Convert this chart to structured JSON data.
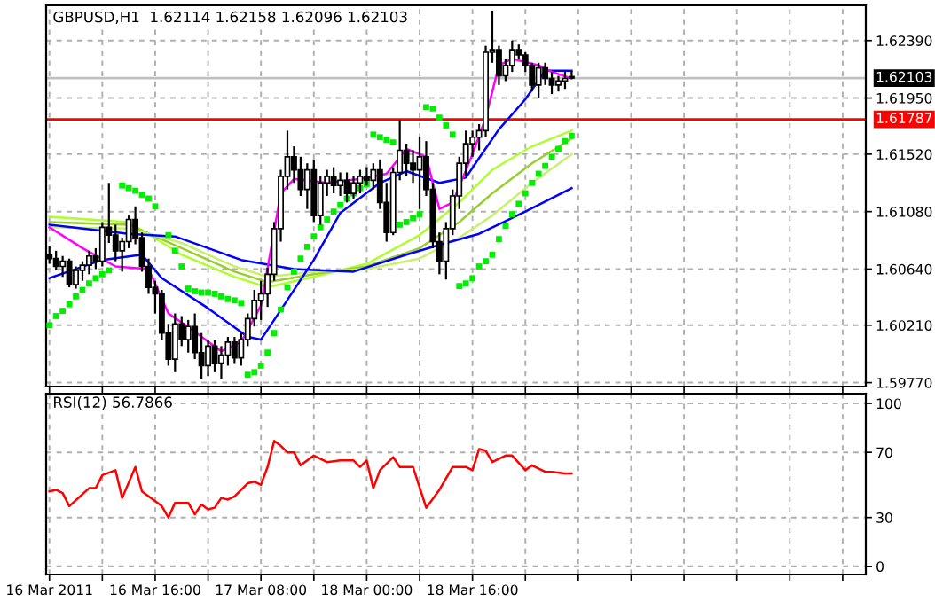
{
  "chart_data": [
    {
      "type": "candlestick",
      "title": "GBPUSD,H1  1.62114 1.62158 1.62096 1.62103",
      "x": [
        "2011-03-16T00:00",
        "2011-03-16T01:00",
        "2011-03-16T02:00",
        "2011-03-16T03:00",
        "2011-03-16T04:00",
        "2011-03-16T05:00",
        "2011-03-16T06:00",
        "2011-03-16T07:00",
        "2011-03-16T08:00",
        "2011-03-16T09:00",
        "2011-03-16T10:00",
        "2011-03-16T11:00",
        "2011-03-16T12:00",
        "2011-03-16T13:00",
        "2011-03-16T14:00",
        "2011-03-16T15:00",
        "2011-03-16T16:00",
        "2011-03-16T17:00",
        "2011-03-16T18:00",
        "2011-03-16T19:00",
        "2011-03-16T20:00",
        "2011-03-16T21:00",
        "2011-03-16T22:00",
        "2011-03-16T23:00",
        "2011-03-17T00:00",
        "2011-03-17T01:00",
        "2011-03-17T02:00",
        "2011-03-17T03:00",
        "2011-03-17T04:00",
        "2011-03-17T05:00",
        "2011-03-17T06:00",
        "2011-03-17T07:00",
        "2011-03-17T08:00",
        "2011-03-17T09:00",
        "2011-03-17T10:00",
        "2011-03-17T11:00",
        "2011-03-17T12:00",
        "2011-03-17T13:00",
        "2011-03-17T14:00",
        "2011-03-17T15:00",
        "2011-03-17T16:00",
        "2011-03-17T17:00",
        "2011-03-17T18:00",
        "2011-03-17T19:00",
        "2011-03-17T20:00",
        "2011-03-17T21:00",
        "2011-03-17T22:00",
        "2011-03-17T23:00",
        "2011-03-18T00:00",
        "2011-03-18T01:00",
        "2011-03-18T02:00",
        "2011-03-18T03:00",
        "2011-03-18T04:00",
        "2011-03-18T05:00",
        "2011-03-18T06:00",
        "2011-03-18T07:00",
        "2011-03-18T08:00",
        "2011-03-18T09:00",
        "2011-03-18T10:00",
        "2011-03-18T11:00",
        "2011-03-18T12:00",
        "2011-03-18T13:00",
        "2011-03-18T14:00",
        "2011-03-18T15:00",
        "2011-03-18T16:00",
        "2011-03-18T17:00",
        "2011-03-18T18:00",
        "2011-03-18T19:00",
        "2011-03-18T20:00",
        "2011-03-18T21:00",
        "2011-03-18T22:00",
        "2011-03-18T23:00",
        "2011-03-19T00:00",
        "2011-03-19T01:00",
        "2011-03-19T02:00",
        "2011-03-19T03:00",
        "2011-03-19T04:00",
        "2011-03-19T05:00",
        "2011-03-19T06:00",
        "2011-03-19T07:00"
      ],
      "ohlc": [
        [
          1.6075,
          1.6082,
          1.6068,
          1.6072
        ],
        [
          1.6072,
          1.6078,
          1.6063,
          1.6066
        ],
        [
          1.6066,
          1.6074,
          1.6058,
          1.607
        ],
        [
          1.607,
          1.6072,
          1.605,
          1.6052
        ],
        [
          1.6052,
          1.6066,
          1.6049,
          1.6063
        ],
        [
          1.6063,
          1.607,
          1.6055,
          1.6067
        ],
        [
          1.6067,
          1.6078,
          1.606,
          1.6074
        ],
        [
          1.6074,
          1.608,
          1.6064,
          1.607
        ],
        [
          1.607,
          1.61,
          1.6066,
          1.6096
        ],
        [
          1.6096,
          1.613,
          1.6084,
          1.609
        ],
        [
          1.609,
          1.6098,
          1.607,
          1.6078
        ],
        [
          1.6078,
          1.6088,
          1.6062,
          1.6085
        ],
        [
          1.6085,
          1.6105,
          1.608,
          1.6102
        ],
        [
          1.6102,
          1.6112,
          1.6083,
          1.6088
        ],
        [
          1.6088,
          1.6092,
          1.6062,
          1.6066
        ],
        [
          1.6066,
          1.6072,
          1.6045,
          1.605
        ],
        [
          1.605,
          1.6055,
          1.603,
          1.6045
        ],
        [
          1.6045,
          1.6048,
          1.601,
          1.6015
        ],
        [
          1.6015,
          1.6022,
          1.599,
          1.5995
        ],
        [
          1.5995,
          1.603,
          1.5985,
          1.6022
        ],
        [
          1.6022,
          1.6028,
          1.6005,
          1.601
        ],
        [
          1.601,
          1.6025,
          1.6,
          1.602
        ],
        [
          1.602,
          1.603,
          1.5995,
          1.6
        ],
        [
          1.6,
          1.6015,
          1.598,
          1.599
        ],
        [
          1.599,
          1.601,
          1.5982,
          1.6005
        ],
        [
          1.6005,
          1.601,
          1.5985,
          1.5992
        ],
        [
          1.5992,
          1.6005,
          1.598,
          1.5998
        ],
        [
          1.5998,
          1.6012,
          1.599,
          1.6008
        ],
        [
          1.6008,
          1.6012,
          1.5992,
          1.5996
        ],
        [
          1.5996,
          1.6015,
          1.599,
          1.601
        ],
        [
          1.601,
          1.603,
          1.6005,
          1.6026
        ],
        [
          1.6026,
          1.6048,
          1.602,
          1.604
        ],
        [
          1.604,
          1.6055,
          1.6025,
          1.6045
        ],
        [
          1.6045,
          1.6065,
          1.6035,
          1.606
        ],
        [
          1.606,
          1.61,
          1.6055,
          1.6095
        ],
        [
          1.6095,
          1.614,
          1.6085,
          1.6135
        ],
        [
          1.6135,
          1.617,
          1.6125,
          1.615
        ],
        [
          1.615,
          1.6158,
          1.613,
          1.614
        ],
        [
          1.614,
          1.615,
          1.612,
          1.6125
        ],
        [
          1.6125,
          1.6145,
          1.611,
          1.614
        ],
        [
          1.614,
          1.6148,
          1.61,
          1.6105
        ],
        [
          1.6105,
          1.6135,
          1.6098,
          1.613
        ],
        [
          1.613,
          1.614,
          1.612,
          1.6135
        ],
        [
          1.6135,
          1.6142,
          1.6122,
          1.6128
        ],
        [
          1.6128,
          1.6138,
          1.612,
          1.6132
        ],
        [
          1.6132,
          1.6138,
          1.6115,
          1.6122
        ],
        [
          1.6122,
          1.6135,
          1.6118,
          1.613
        ],
        [
          1.613,
          1.614,
          1.6122,
          1.6135
        ],
        [
          1.6135,
          1.6142,
          1.6128,
          1.6132
        ],
        [
          1.6132,
          1.6145,
          1.6125,
          1.614
        ],
        [
          1.614,
          1.6148,
          1.611,
          1.6115
        ],
        [
          1.6115,
          1.613,
          1.6085,
          1.6092
        ],
        [
          1.6092,
          1.6142,
          1.609,
          1.6138
        ],
        [
          1.6138,
          1.6178,
          1.6132,
          1.6155
        ],
        [
          1.6155,
          1.616,
          1.6135,
          1.6145
        ],
        [
          1.6145,
          1.6155,
          1.613,
          1.614
        ],
        [
          1.614,
          1.6165,
          1.611,
          1.615
        ],
        [
          1.615,
          1.6162,
          1.612,
          1.6125
        ],
        [
          1.6125,
          1.613,
          1.608,
          1.6085
        ],
        [
          1.6085,
          1.6092,
          1.606,
          1.607
        ],
        [
          1.607,
          1.61,
          1.6056,
          1.6095
        ],
        [
          1.6095,
          1.6125,
          1.609,
          1.612
        ],
        [
          1.612,
          1.615,
          1.611,
          1.6145
        ],
        [
          1.6145,
          1.617,
          1.6135,
          1.616
        ],
        [
          1.616,
          1.617,
          1.615,
          1.6165
        ],
        [
          1.6165,
          1.6175,
          1.6155,
          1.617
        ],
        [
          1.617,
          1.6235,
          1.6165,
          1.623
        ],
        [
          1.623,
          1.6262,
          1.6222,
          1.6232
        ],
        [
          1.6232,
          1.6235,
          1.6205,
          1.6212
        ],
        [
          1.6212,
          1.6225,
          1.6208,
          1.622
        ],
        [
          1.622,
          1.6239,
          1.6215,
          1.6232
        ],
        [
          1.6232,
          1.6236,
          1.6225,
          1.6228
        ],
        [
          1.6228,
          1.623,
          1.6215,
          1.622
        ],
        [
          1.622,
          1.6222,
          1.62,
          1.6205
        ],
        [
          1.6205,
          1.6222,
          1.6195,
          1.6218
        ],
        [
          1.6218,
          1.6222,
          1.6205,
          1.621
        ],
        [
          1.621,
          1.6215,
          1.6198,
          1.6205
        ],
        [
          1.6205,
          1.6212,
          1.62,
          1.6208
        ],
        [
          1.6208,
          1.6215,
          1.6202,
          1.621
        ],
        [
          1.62114,
          1.62158,
          1.62096,
          1.62103
        ]
      ],
      "series": [
        {
          "type": "line",
          "color": "#adff2f",
          "x": [
            "2011-03-16T00:00",
            "2011-03-16T12:00",
            "2011-03-16T20:00",
            "2011-03-17T04:00",
            "2011-03-17T09:00",
            "2011-03-17T16:00",
            "2011-03-18T00:00",
            "2011-03-18T08:00",
            "2011-03-18T14:00",
            "2011-03-18T19:00",
            "2011-03-19T01:00",
            "2011-03-19T07:00"
          ],
          "values": [
            1.6104,
            1.61,
            1.6075,
            1.6058,
            1.605,
            1.6058,
            1.6068,
            1.609,
            1.6115,
            1.614,
            1.6158,
            1.617
          ]
        },
        {
          "type": "line",
          "color": "#9acd32",
          "x": [
            "2011-03-16T00:00",
            "2011-03-16T12:00",
            "2011-03-16T20:00",
            "2011-03-17T04:00",
            "2011-03-17T09:00",
            "2011-03-17T16:00",
            "2011-03-18T00:00",
            "2011-03-18T08:00",
            "2011-03-18T14:00",
            "2011-03-18T19:00",
            "2011-03-19T01:00",
            "2011-03-19T07:00"
          ],
          "values": [
            1.61,
            1.6098,
            1.608,
            1.6062,
            1.6054,
            1.606,
            1.6066,
            1.608,
            1.61,
            1.6122,
            1.6145,
            1.6164
          ]
        },
        {
          "type": "line",
          "color": "#c8f06e",
          "x": [
            "2011-03-16T00:00",
            "2011-03-16T12:00",
            "2011-03-16T20:00",
            "2011-03-17T04:00",
            "2011-03-17T09:00",
            "2011-03-17T16:00",
            "2011-03-18T00:00",
            "2011-03-18T08:00",
            "2011-03-18T14:00",
            "2011-03-18T19:00",
            "2011-03-19T01:00",
            "2011-03-19T07:00"
          ],
          "values": [
            1.6096,
            1.6095,
            1.6084,
            1.6066,
            1.6058,
            1.6062,
            1.6064,
            1.6072,
            1.6088,
            1.6105,
            1.613,
            1.6152
          ]
        },
        {
          "type": "line",
          "color": "#0000ff",
          "x": [
            "2011-03-16T00:00",
            "2011-03-16T12:00",
            "2011-03-16T19:00",
            "2011-03-17T05:00",
            "2011-03-17T13:00",
            "2011-03-17T22:00",
            "2011-03-18T06:00",
            "2011-03-18T12:00",
            "2011-03-18T17:00",
            "2011-03-19T00:00",
            "2011-03-19T07:00"
          ],
          "values": [
            1.6098,
            1.6091,
            1.6089,
            1.6071,
            1.6064,
            1.6062,
            1.6075,
            1.6084,
            1.6091,
            1.6108,
            1.6126
          ]
        },
        {
          "type": "line",
          "color": "#0000ff",
          "x": [
            "2011-03-16T00:00",
            "2011-03-16T08:00",
            "2011-03-16T14:00",
            "2011-03-16T17:00",
            "2011-03-17T00:00",
            "2011-03-17T06:00",
            "2011-03-17T08:00",
            "2011-03-17T10:00",
            "2011-03-17T16:00",
            "2011-03-17T20:00",
            "2011-03-18T02:00",
            "2011-03-18T06:00",
            "2011-03-18T11:00",
            "2011-03-18T15:00",
            "2011-03-18T17:00",
            "2011-03-18T20:00",
            "2011-03-19T00:00",
            "2011-03-19T03:00",
            "2011-03-19T07:00"
          ],
          "values": [
            1.6057,
            1.6071,
            1.6075,
            1.6057,
            1.6034,
            1.6012,
            1.601,
            1.6025,
            1.6071,
            1.6107,
            1.613,
            1.6139,
            1.613,
            1.6134,
            1.6149,
            1.6171,
            1.6194,
            1.6216,
            1.6216
          ]
        },
        {
          "type": "line",
          "color": "#ff00ff",
          "x": [
            "2011-03-16T00:00",
            "2011-03-16T05:00",
            "2011-03-16T10:00",
            "2011-03-16T15:00",
            "2011-03-16T18:00",
            "2011-03-16T22:00",
            "2011-03-17T02:00",
            "2011-03-17T05:00",
            "2011-03-17T08:00",
            "2011-03-17T11:00",
            "2011-03-17T13:00",
            "2011-03-17T18:00",
            "2011-03-17T23:00",
            "2011-03-18T03:00",
            "2011-03-18T06:00",
            "2011-03-18T09:00",
            "2011-03-18T11:00",
            "2011-03-18T13:00",
            "2011-03-18T16:00",
            "2011-03-18T18:00",
            "2011-03-18T20:00",
            "2011-03-18T22:00",
            "2011-03-19T02:00",
            "2011-03-19T04:00",
            "2011-03-19T07:00"
          ],
          "values": [
            1.6096,
            1.608,
            1.6066,
            1.6064,
            1.603,
            1.6016,
            1.6001,
            1.6008,
            1.6036,
            1.6122,
            1.6133,
            1.613,
            1.6133,
            1.6137,
            1.6156,
            1.615,
            1.611,
            1.6115,
            1.6152,
            1.618,
            1.622,
            1.6225,
            1.622,
            1.6215,
            1.621
          ]
        },
        {
          "type": "scatter",
          "color": "#00ee00",
          "marker": "square",
          "x": [
            "2011-03-16T00:00",
            "2011-03-16T01:00",
            "2011-03-16T02:00",
            "2011-03-16T03:00",
            "2011-03-16T04:00",
            "2011-03-16T05:00",
            "2011-03-16T06:00",
            "2011-03-16T07:00",
            "2011-03-16T08:00",
            "2011-03-16T09:00",
            "2011-03-16T11:00",
            "2011-03-16T12:00",
            "2011-03-16T13:00",
            "2011-03-16T14:00",
            "2011-03-16T15:00",
            "2011-03-16T16:00",
            "2011-03-16T18:00",
            "2011-03-16T19:00",
            "2011-03-16T20:00",
            "2011-03-16T21:00",
            "2011-03-16T22:00",
            "2011-03-16T23:00",
            "2011-03-17T00:00",
            "2011-03-17T01:00",
            "2011-03-17T02:00",
            "2011-03-17T03:00",
            "2011-03-17T04:00",
            "2011-03-17T05:00",
            "2011-03-17T06:00",
            "2011-03-17T07:00",
            "2011-03-17T08:00",
            "2011-03-17T09:00",
            "2011-03-17T10:00",
            "2011-03-17T11:00",
            "2011-03-17T12:00",
            "2011-03-17T13:00",
            "2011-03-17T14:00",
            "2011-03-17T15:00",
            "2011-03-17T16:00",
            "2011-03-17T17:00",
            "2011-03-17T18:00",
            "2011-03-17T19:00",
            "2011-03-17T20:00",
            "2011-03-17T21:00",
            "2011-03-17T22:00",
            "2011-03-17T23:00",
            "2011-03-18T00:00",
            "2011-03-18T01:00",
            "2011-03-18T02:00",
            "2011-03-18T03:00",
            "2011-03-18T04:00",
            "2011-03-18T05:00",
            "2011-03-18T06:00",
            "2011-03-18T07:00",
            "2011-03-18T08:00",
            "2011-03-18T09:00",
            "2011-03-18T10:00",
            "2011-03-18T11:00",
            "2011-03-18T12:00",
            "2011-03-18T13:00",
            "2011-03-18T14:00",
            "2011-03-18T15:00",
            "2011-03-18T16:00",
            "2011-03-18T17:00",
            "2011-03-18T18:00",
            "2011-03-18T19:00",
            "2011-03-18T20:00",
            "2011-03-18T21:00",
            "2011-03-18T22:00",
            "2011-03-18T23:00",
            "2011-03-19T00:00",
            "2011-03-19T01:00",
            "2011-03-19T02:00",
            "2011-03-19T03:00",
            "2011-03-19T04:00",
            "2011-03-19T05:00",
            "2011-03-19T06:00",
            "2011-03-19T07:00"
          ],
          "values": [
            1.6021,
            1.6028,
            1.6032,
            1.6037,
            1.6043,
            1.6048,
            1.6053,
            1.6057,
            1.606,
            1.6063,
            1.6128,
            1.6126,
            1.6124,
            1.6121,
            1.6118,
            1.6112,
            1.609,
            1.6078,
            1.6066,
            1.6049,
            1.6047,
            1.6046,
            1.6046,
            1.6045,
            1.6043,
            1.6041,
            1.604,
            1.6038,
            1.5983,
            1.5985,
            1.599,
            1.6,
            1.6015,
            1.6033,
            1.605,
            1.6062,
            1.6072,
            1.6081,
            1.6089,
            1.6096,
            1.6102,
            1.6108,
            1.6113,
            1.6118,
            1.6122,
            1.6126,
            1.6129,
            1.6167,
            1.6165,
            1.6163,
            1.6161,
            1.6098,
            1.61,
            1.6103,
            1.6106,
            1.6188,
            1.6187,
            1.618,
            1.6174,
            1.6167,
            1.6051,
            1.6053,
            1.6057,
            1.6066,
            1.607,
            1.6075,
            1.6087,
            1.6097,
            1.6106,
            1.6114,
            1.6122,
            1.613,
            1.6137,
            1.6143,
            1.615,
            1.6156,
            1.6162,
            1.6166
          ]
        }
      ],
      "xlim": [
        "2011-03-15T23:30",
        "2011-03-21T03:30"
      ],
      "xticks": [
        {
          "value": "2011-03-16T00:00",
          "label": null
        },
        {
          "value": "2011-03-16T08:00",
          "label": null
        },
        {
          "value": "2011-03-16T16:00",
          "label": null
        },
        {
          "value": "2011-03-17T00:00",
          "label": null
        },
        {
          "value": "2011-03-17T08:00",
          "label": null
        },
        {
          "value": "2011-03-17T16:00",
          "label": null
        },
        {
          "value": "2011-03-18T00:00",
          "label": null
        },
        {
          "value": "2011-03-18T08:00",
          "label": null
        },
        {
          "value": "2011-03-18T16:00",
          "label": null
        },
        {
          "value": "2011-03-19T00:00",
          "label": null
        },
        {
          "value": "2011-03-19T08:00",
          "label": null
        },
        {
          "value": "2011-03-19T16:00",
          "label": null
        },
        {
          "value": "2011-03-20T00:00",
          "label": null
        },
        {
          "value": "2011-03-20T08:00",
          "label": null
        },
        {
          "value": "2011-03-20T16:00",
          "label": null
        },
        {
          "value": "2011-03-21T00:00",
          "label": null
        }
      ],
      "ylim": [
        1.5974,
        1.6266
      ],
      "yticks": [
        {
          "value": 1.5977,
          "label": "1.59770"
        },
        {
          "value": 1.6021,
          "label": "1.60210"
        },
        {
          "value": 1.6064,
          "label": "1.60640"
        },
        {
          "value": 1.6108,
          "label": "1.61080"
        },
        {
          "value": 1.6152,
          "label": "1.61520"
        },
        {
          "value": 1.6195,
          "label": "1.61950"
        },
        {
          "value": 1.6239,
          "label": "1.62390"
        }
      ],
      "ref_lines": [
        {
          "axis": "y",
          "value": 1.62103,
          "label": "1.62103",
          "color": "#c0c0c0"
        },
        {
          "axis": "y",
          "value": 1.61787,
          "label": "1.61787",
          "color": "#ff0000"
        }
      ],
      "grid": true,
      "tick_labels": "y"
    },
    {
      "type": "line",
      "title": "RSI(12) 56.7866",
      "series": [
        {
          "color": "#ff0000",
          "x": [
            "2011-03-16T00:00",
            "2011-03-16T01:00",
            "2011-03-16T02:00",
            "2011-03-16T03:00",
            "2011-03-16T06:00",
            "2011-03-16T07:00",
            "2011-03-16T08:00",
            "2011-03-16T10:00",
            "2011-03-16T11:00",
            "2011-03-16T13:00",
            "2011-03-16T14:00",
            "2011-03-16T17:00",
            "2011-03-16T18:00",
            "2011-03-16T19:00",
            "2011-03-16T21:00",
            "2011-03-16T22:00",
            "2011-03-16T23:00",
            "2011-03-17T00:00",
            "2011-03-17T01:00",
            "2011-03-17T02:00",
            "2011-03-17T03:00",
            "2011-03-17T04:00",
            "2011-03-17T06:00",
            "2011-03-17T07:00",
            "2011-03-17T08:00",
            "2011-03-17T09:00",
            "2011-03-17T10:00",
            "2011-03-17T11:00",
            "2011-03-17T12:00",
            "2011-03-17T13:00",
            "2011-03-17T14:00",
            "2011-03-17T16:00",
            "2011-03-17T18:00",
            "2011-03-17T20:00",
            "2011-03-17T22:00",
            "2011-03-17T23:00",
            "2011-03-18T00:00",
            "2011-03-18T01:00",
            "2011-03-18T02:00",
            "2011-03-18T04:00",
            "2011-03-18T05:00",
            "2011-03-18T07:00",
            "2011-03-18T09:00",
            "2011-03-18T11:00",
            "2011-03-18T13:00",
            "2011-03-18T15:00",
            "2011-03-18T16:00",
            "2011-03-18T17:00",
            "2011-03-18T18:00",
            "2011-03-18T19:00",
            "2011-03-18T21:00",
            "2011-03-18T22:00",
            "2011-03-19T00:00",
            "2011-03-19T01:00",
            "2011-03-19T03:00",
            "2011-03-19T04:00",
            "2011-03-19T06:00",
            "2011-03-19T07:00"
          ],
          "values": [
            46,
            47,
            45,
            37,
            48,
            48,
            56,
            59,
            42,
            61,
            46,
            37,
            30,
            39,
            39,
            32,
            38,
            35,
            36,
            42,
            41,
            43,
            51,
            52,
            50,
            61,
            77,
            74,
            70,
            70,
            62,
            68,
            64,
            65,
            65,
            61,
            65,
            48,
            59,
            67,
            61,
            61,
            36,
            47,
            61,
            61,
            59,
            72,
            71,
            64,
            68,
            68,
            59,
            62,
            58,
            58,
            57,
            57
          ]
        }
      ],
      "xlim": [
        "2011-03-15T23:30",
        "2011-03-21T03:30"
      ],
      "xticks": [
        {
          "value": "2011-03-16T00:00",
          "label": "16 Mar 2011"
        },
        {
          "value": "2011-03-16T08:00",
          "label": null
        },
        {
          "value": "2011-03-16T16:00",
          "label": "16 Mar 16:00"
        },
        {
          "value": "2011-03-17T00:00",
          "label": null
        },
        {
          "value": "2011-03-17T08:00",
          "label": "17 Mar 08:00"
        },
        {
          "value": "2011-03-17T16:00",
          "label": null
        },
        {
          "value": "2011-03-18T00:00",
          "label": "18 Mar 00:00"
        },
        {
          "value": "2011-03-18T08:00",
          "label": null
        },
        {
          "value": "2011-03-18T16:00",
          "label": "18 Mar 16:00"
        },
        {
          "value": "2011-03-19T00:00",
          "label": null
        },
        {
          "value": "2011-03-19T08:00",
          "label": null
        },
        {
          "value": "2011-03-19T16:00",
          "label": null
        },
        {
          "value": "2011-03-20T00:00",
          "label": null
        },
        {
          "value": "2011-03-20T08:00",
          "label": null
        },
        {
          "value": "2011-03-20T16:00",
          "label": null
        },
        {
          "value": "2011-03-21T00:00",
          "label": null
        }
      ],
      "ylim": [
        -5,
        106
      ],
      "yticks": [
        0,
        30,
        70,
        100
      ],
      "grid": true
    }
  ]
}
